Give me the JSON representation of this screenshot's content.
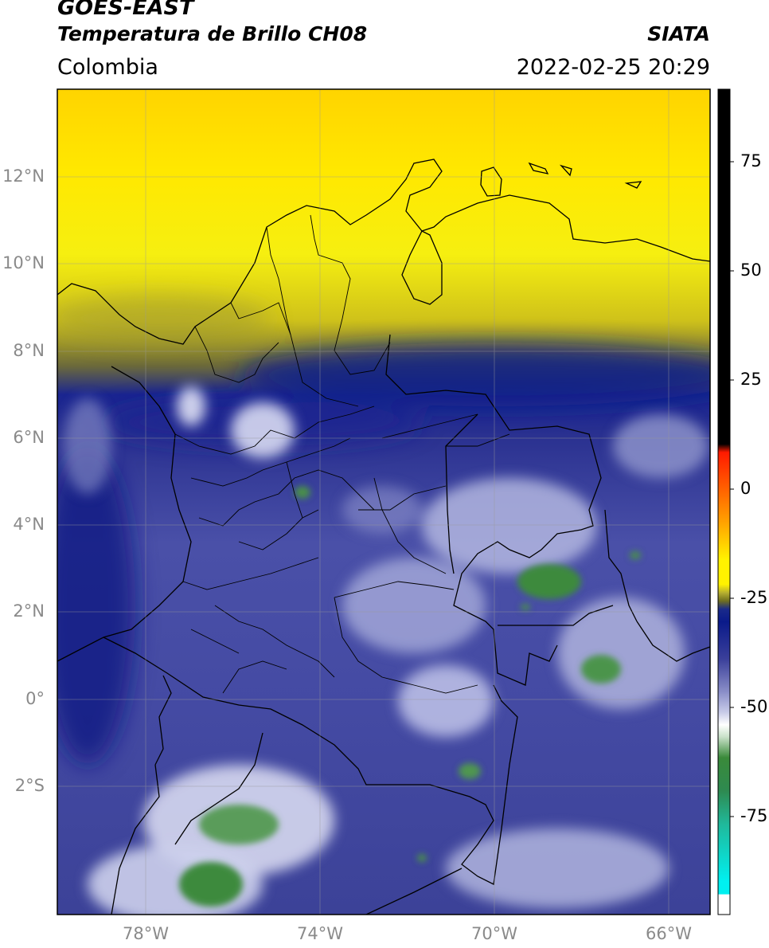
{
  "header": {
    "satellite": "GOES-EAST",
    "product": "Temperatura de Brillo CH08",
    "source": "SIATA",
    "region": "Colombia",
    "datetime": "2022-02-25 20:29"
  },
  "map": {
    "lat_ticks": [
      "12°N",
      "10°N",
      "8°N",
      "6°N",
      "4°N",
      "2°N",
      "0°",
      "2°S"
    ],
    "lon_ticks": [
      "78°W",
      "74°W",
      "70°W",
      "66°W"
    ]
  },
  "colorbar": {
    "ticks": [
      "75",
      "50",
      "25",
      "0",
      "-25",
      "-50",
      "-75"
    ],
    "colors": {
      "black": "#000000",
      "red": "#ff1a00",
      "orange": "#ff9a00",
      "yellow": "#fff200",
      "olive": "#6f6f20",
      "navy": "#0a1a8a",
      "lavender": "#c8cbe8",
      "white": "#ffffff",
      "green": "#3a8a3a",
      "teal": "#20b89a",
      "cyan": "#00f0f0"
    }
  },
  "theme": {
    "cold_cloud_green": "#3d8a3d",
    "mid_blue": "#3a3f9a",
    "deep_navy": "#15208a",
    "warm_yellow": "#ffe800",
    "border_color": "#000000"
  }
}
